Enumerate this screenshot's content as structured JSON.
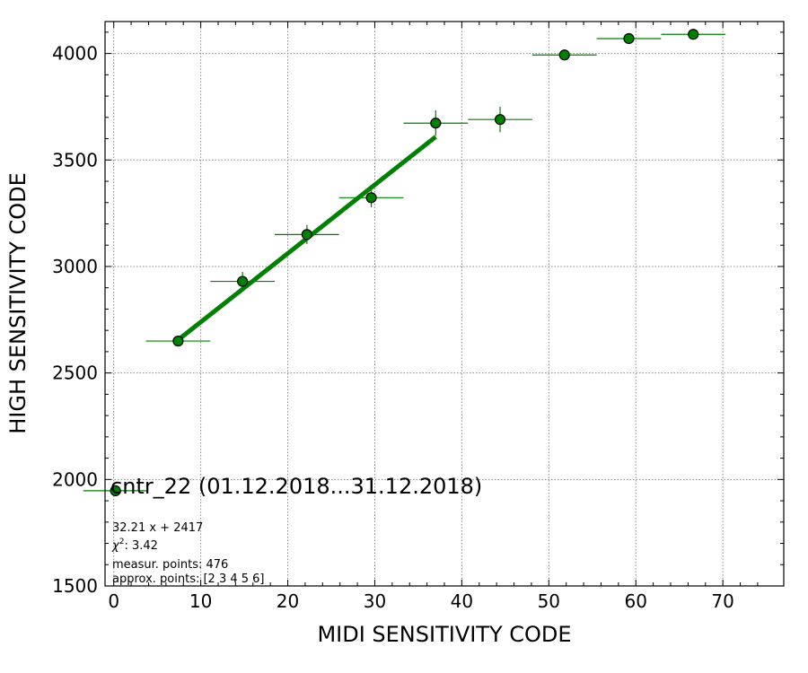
{
  "chart_data": {
    "type": "scatter",
    "xlabel": "MIDI SENSITIVITY CODE",
    "ylabel": "HIGH SENSITIVITY CODE",
    "xlim": [
      -1,
      77
    ],
    "ylim": [
      1500,
      4150
    ],
    "xticks": [
      0,
      10,
      20,
      30,
      40,
      50,
      60,
      70
    ],
    "yticks": [
      1500,
      2000,
      2500,
      3000,
      3500,
      4000
    ],
    "grid": true,
    "colors": {
      "marker": "#008000",
      "marker_edge": "#000000",
      "fit_line": "#008000",
      "error_bar": "#008000"
    },
    "points": [
      {
        "x": 0.2,
        "y": 1947,
        "xerr": 3.7,
        "yerr": 0
      },
      {
        "x": 7.4,
        "y": 2650,
        "xerr": 3.7,
        "yerr": 15
      },
      {
        "x": 14.8,
        "y": 2930,
        "xerr": 3.7,
        "yerr": 45
      },
      {
        "x": 22.2,
        "y": 3150,
        "xerr": 3.7,
        "yerr": 45
      },
      {
        "x": 29.6,
        "y": 3323,
        "xerr": 3.7,
        "yerr": 45
      },
      {
        "x": 37.0,
        "y": 3673,
        "xerr": 3.7,
        "yerr": 60
      },
      {
        "x": 44.4,
        "y": 3690,
        "xerr": 3.7,
        "yerr": 60
      },
      {
        "x": 51.8,
        "y": 3993,
        "xerr": 3.7,
        "yerr": 0
      },
      {
        "x": 59.2,
        "y": 4070,
        "xerr": 3.7,
        "yerr": 0
      },
      {
        "x": 66.6,
        "y": 4090,
        "xerr": 3.7,
        "yerr": 0
      }
    ],
    "fit_line": {
      "slope": 32.21,
      "intercept": 2417,
      "x_range": [
        7.4,
        37.0
      ]
    },
    "annotations": {
      "title": "cntr_22 (01.12.2018...31.12.2018)",
      "equation": "32.21 x + 2417",
      "chi2_value": ": 3.42",
      "measur_points": "measur. points: 476",
      "approx_points": "approx. points: [2 3 4 5 6]"
    }
  }
}
